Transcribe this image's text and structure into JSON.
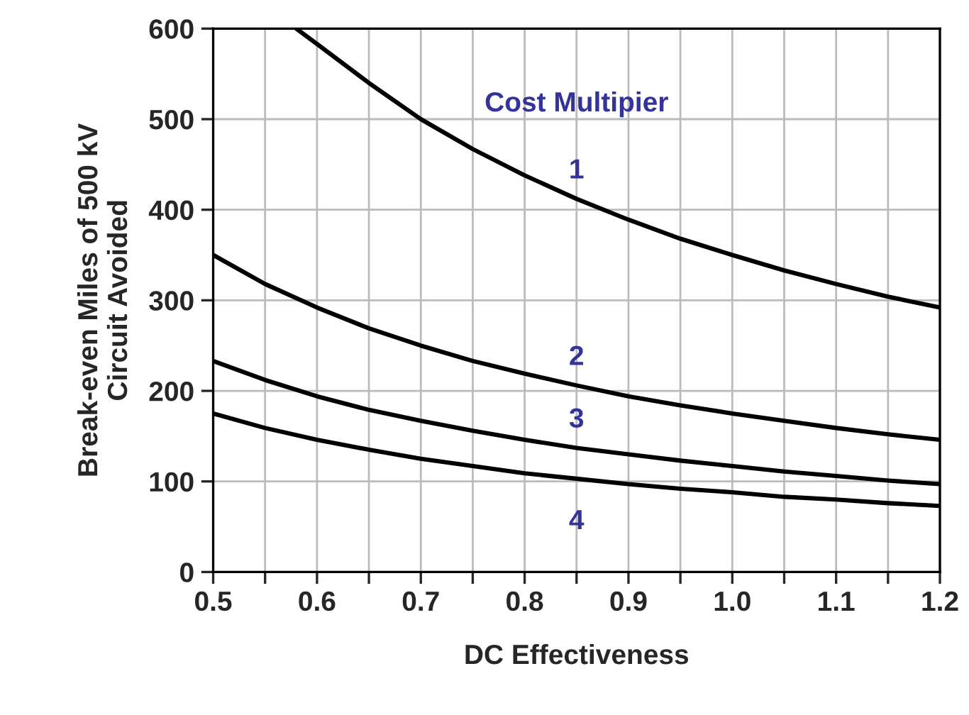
{
  "chart_data": {
    "type": "line",
    "xlabel": "DC Effectiveness",
    "ylabel": "Break-even Miles of 500 kV\nCircuit Avoided",
    "xlim": [
      0.5,
      1.2
    ],
    "ylim": [
      0,
      600
    ],
    "xticks": [
      0.5,
      {
        "value": 0.55,
        "label": null
      },
      0.6,
      {
        "value": 0.65,
        "label": null
      },
      0.7,
      {
        "value": 0.75,
        "label": null
      },
      0.8,
      {
        "value": 0.85,
        "label": null
      },
      0.9,
      {
        "value": 0.95,
        "label": null
      },
      {
        "value": 1.0,
        "label": "1.0"
      },
      {
        "value": 1.05,
        "label": null
      },
      1.1,
      {
        "value": 1.15,
        "label": null
      },
      1.2
    ],
    "yticks": [
      0,
      100,
      200,
      300,
      400,
      500,
      600
    ],
    "grid": true,
    "legend": false,
    "marker": "none",
    "line_style": "solid",
    "x": [
      0.5,
      0.55,
      0.6,
      0.65,
      0.7,
      0.75,
      0.8,
      0.85,
      0.9,
      0.95,
      1.0,
      1.05,
      1.1,
      1.15,
      1.2
    ],
    "series": [
      {
        "name": "1",
        "color": "#000000",
        "x": [
          0.58,
          0.6,
          0.65,
          0.7,
          0.75,
          0.8,
          0.85,
          0.9,
          0.95,
          1.0,
          1.05,
          1.1,
          1.15,
          1.2
        ],
        "values": [
          600,
          583,
          540,
          500,
          467,
          438,
          412,
          389,
          368,
          350,
          333,
          318,
          304,
          292
        ]
      },
      {
        "name": "2",
        "color": "#000000",
        "values": [
          350,
          318,
          292,
          269,
          250,
          233,
          219,
          206,
          194,
          184,
          175,
          167,
          159,
          152,
          146
        ]
      },
      {
        "name": "3",
        "color": "#000000",
        "values": [
          233,
          212,
          194,
          179,
          167,
          156,
          146,
          137,
          130,
          123,
          117,
          111,
          106,
          101,
          97
        ]
      },
      {
        "name": "4",
        "color": "#000000",
        "values": [
          175,
          159,
          146,
          135,
          125,
          117,
          109,
          103,
          97,
          92,
          88,
          83,
          80,
          76,
          73
        ]
      }
    ],
    "legend_title": "Cost Multipier"
  }
}
